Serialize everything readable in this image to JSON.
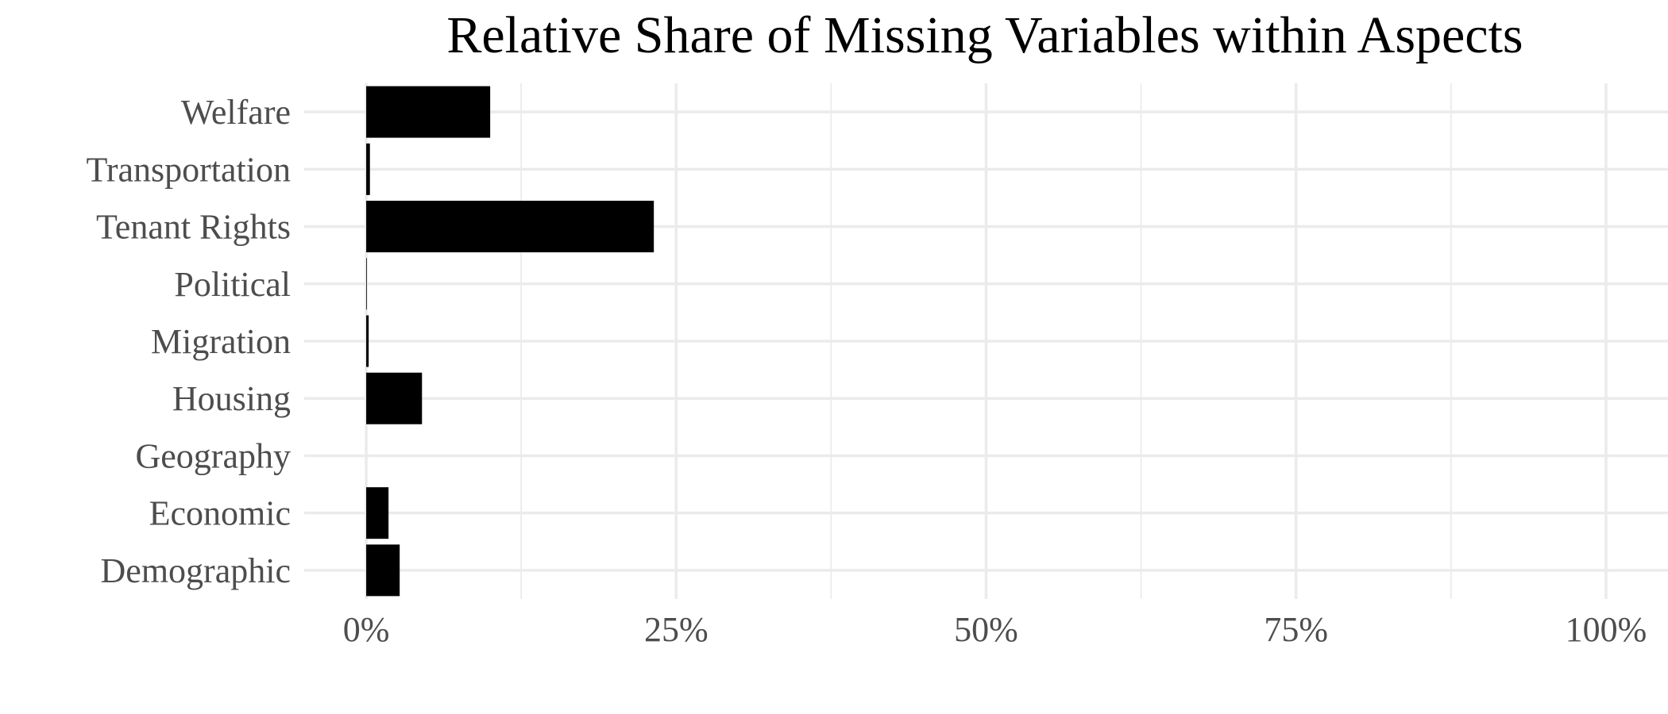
{
  "chart_data": {
    "type": "bar",
    "orientation": "horizontal",
    "title": "Relative Share of Missing Variables within Aspects",
    "xlabel": "",
    "ylabel": "",
    "categories": [
      "Demographic",
      "Economic",
      "Geography",
      "Housing",
      "Migration",
      "Political",
      "Tenant Rights",
      "Transportation",
      "Welfare"
    ],
    "values": [
      0.027,
      0.018,
      0.0,
      0.045,
      0.002,
      0.0005,
      0.232,
      0.003,
      0.1
    ],
    "value_format": "percent",
    "xlim": [
      -0.05,
      1.05
    ],
    "x_ticks": [
      0,
      0.25,
      0.5,
      0.75,
      1.0
    ],
    "x_tick_labels": [
      "0%",
      "25%",
      "50%",
      "75%",
      "100%"
    ],
    "grid": true,
    "legend": "none",
    "bar_color": "#000000",
    "grid_color": "#ebebeb",
    "tick_label_color": "#4d4d4d",
    "title_color": "#000000",
    "background_color": "#ffffff"
  }
}
